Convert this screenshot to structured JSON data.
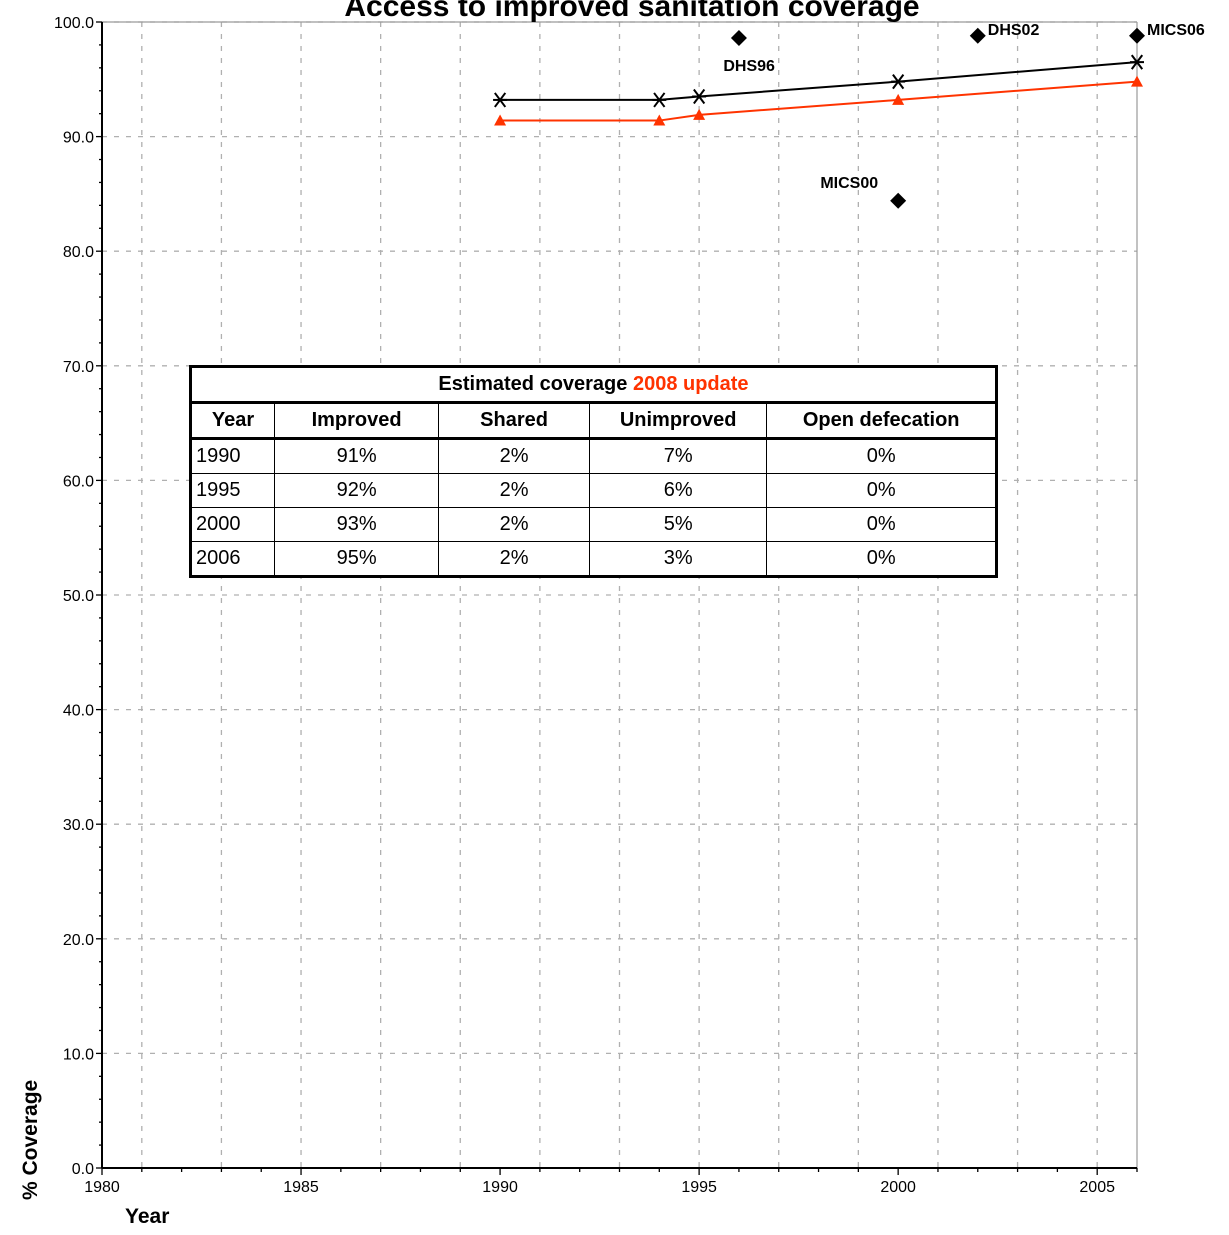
{
  "chart_data": {
    "type": "line",
    "title": "Access to improved sanitation coverage",
    "xlabel": "Year",
    "ylabel": "% Coverage",
    "xlim": [
      1980,
      2006
    ],
    "ylim": [
      0,
      100
    ],
    "x_ticks": [
      "1980",
      "1985",
      "1990",
      "1995",
      "2000",
      "2005"
    ],
    "y_ticks": [
      "0.0",
      "10.0",
      "20.0",
      "30.0",
      "40.0",
      "50.0",
      "60.0",
      "70.0",
      "80.0",
      "90.0",
      "100.0"
    ],
    "grid": true,
    "series": [
      {
        "marker": "asterisk",
        "color": "#000000",
        "x": [
          1990,
          1994,
          1995,
          2000,
          2006
        ],
        "y": [
          93.2,
          93.2,
          93.5,
          94.8,
          96.5
        ]
      },
      {
        "marker": "triangle",
        "color": "#ff3300",
        "x": [
          1990,
          1994,
          1995,
          2000,
          2006
        ],
        "y": [
          91.4,
          91.4,
          91.9,
          93.2,
          94.8
        ]
      }
    ],
    "surveys": [
      {
        "label": "DHS96",
        "x": 1996,
        "y": 98.6,
        "label_pos": "below-left"
      },
      {
        "label": "MICS00",
        "x": 2000,
        "y": 84.4,
        "label_pos": "above-left"
      },
      {
        "label": "DHS02",
        "x": 2002,
        "y": 98.8,
        "label_pos": "right"
      },
      {
        "label": "MICS06",
        "x": 2006,
        "y": 98.8,
        "label_pos": "right"
      }
    ]
  },
  "table": {
    "title_prefix": "Estimated coverage ",
    "title_highlight": "2008 update",
    "highlight_color": "#ff3300",
    "headers": [
      "Year",
      "Improved",
      "Shared",
      "Unimproved",
      "Open defecation"
    ],
    "rows": [
      [
        "1990",
        "91%",
        "2%",
        "7%",
        "0%"
      ],
      [
        "1995",
        "92%",
        "2%",
        "6%",
        "0%"
      ],
      [
        "2000",
        "93%",
        "2%",
        "5%",
        "0%"
      ],
      [
        "2006",
        "95%",
        "2%",
        "3%",
        "0%"
      ]
    ]
  }
}
